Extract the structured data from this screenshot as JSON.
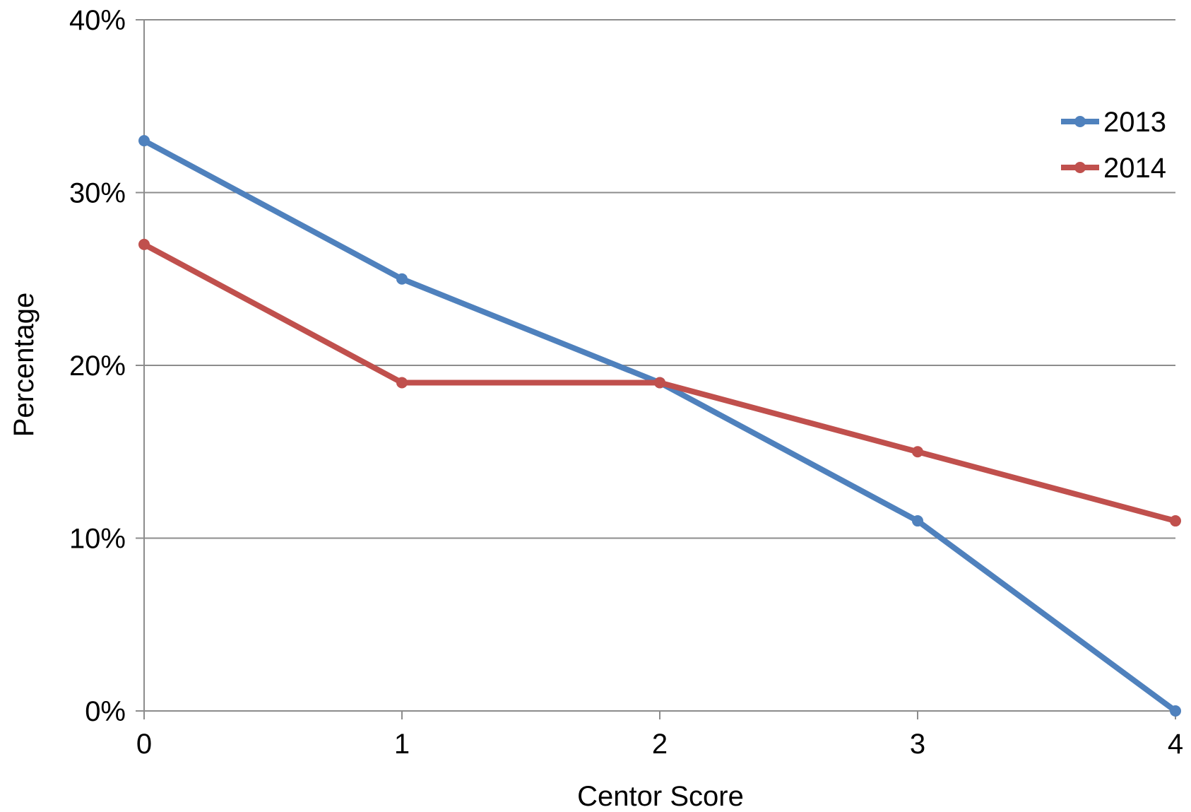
{
  "chart_data": {
    "type": "line",
    "title": "",
    "xlabel": "Centor Score",
    "ylabel": "Percentage",
    "x": [
      0,
      1,
      2,
      3,
      4
    ],
    "x_tick_labels": [
      "0",
      "1",
      "2",
      "3",
      "4"
    ],
    "y_tick_labels": [
      "0%",
      "10%",
      "20%",
      "30%",
      "40%"
    ],
    "y_ticks": [
      0,
      10,
      20,
      30,
      40
    ],
    "xlim": [
      0,
      4
    ],
    "ylim": [
      0,
      40
    ],
    "y_unit": "%",
    "grid": "horizontal major gridlines on",
    "legend_position": "right",
    "series": [
      {
        "name": "2013",
        "color": "#4F81BD",
        "values": [
          33,
          25,
          19,
          11,
          0
        ]
      },
      {
        "name": "2014",
        "color": "#C0504D",
        "values": [
          27,
          19,
          19,
          15,
          11
        ]
      }
    ]
  }
}
